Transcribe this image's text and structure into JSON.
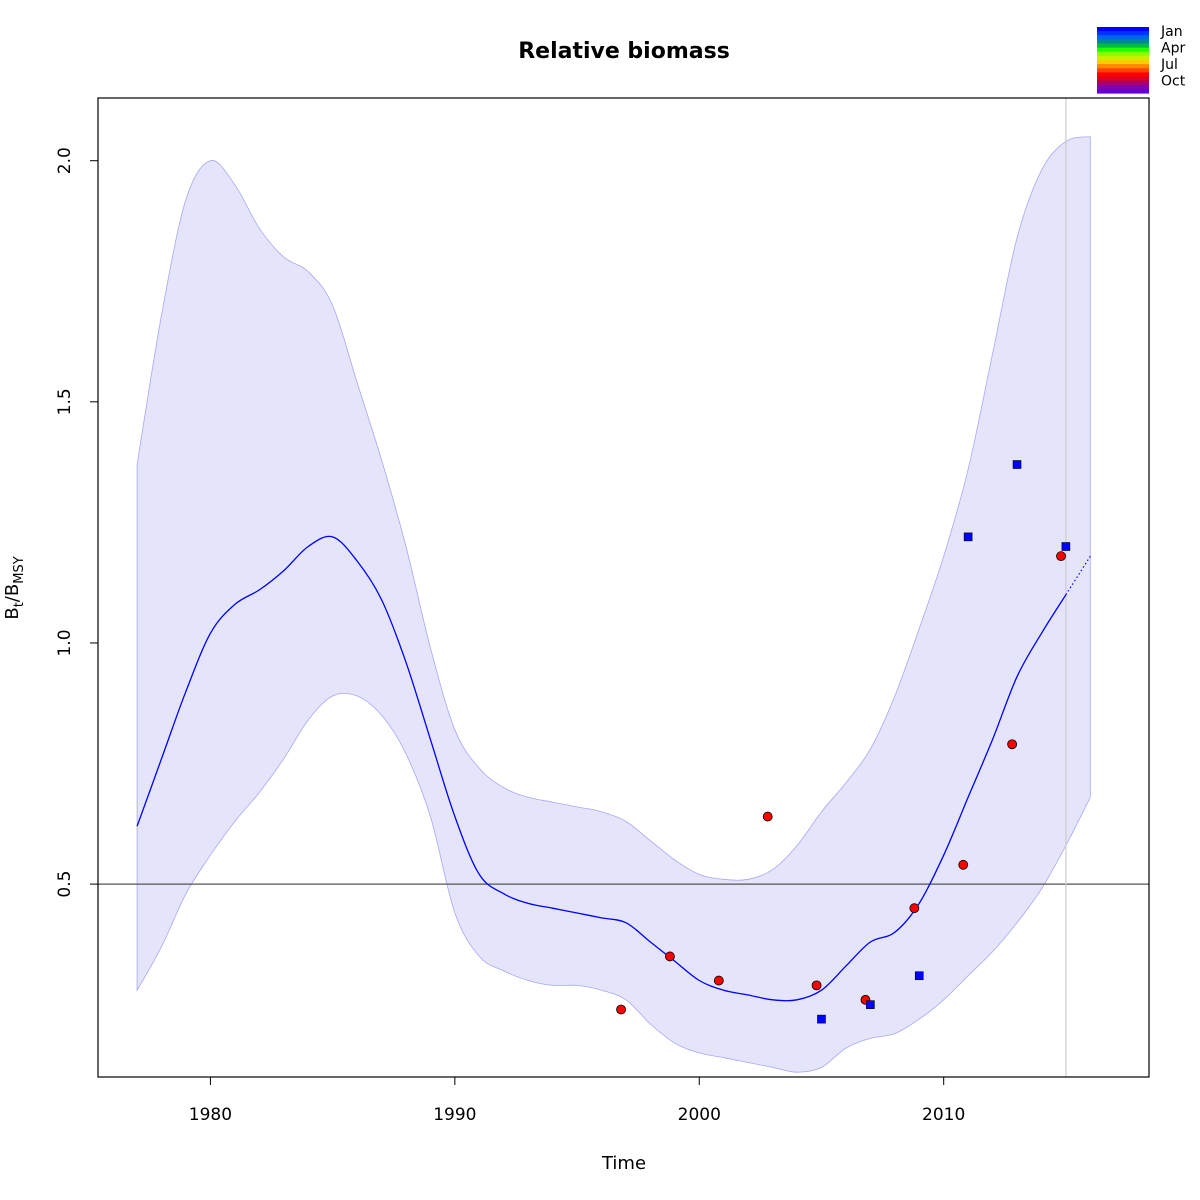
{
  "chart_data": {
    "type": "line",
    "title": "Relative biomass",
    "xlabel": "Time",
    "ylabel": {
      "base1": "B",
      "sub1": "t",
      "sep": "/",
      "base2": "B",
      "sub2": "MSY"
    },
    "xlim": [
      1975.4,
      2018.4
    ],
    "ylim": [
      0.1,
      2.13
    ],
    "xticks": [
      1980,
      1990,
      2000,
      2010
    ],
    "xtick_labels": [
      "1980",
      "1990",
      "2000",
      "2010"
    ],
    "yticks": [
      0.5,
      1.0,
      1.5,
      2.0
    ],
    "ytick_labels": [
      "0.5",
      "1.0",
      "1.5",
      "2.0"
    ],
    "colors": {
      "line": "#0000ff",
      "band": "#e4e4fb",
      "band_border": "#a8a8f0",
      "red_points": "#ff0000",
      "blue_points": "#0000ff",
      "ref_line": "#555555",
      "vline": "#cccccc"
    },
    "reference_line_y": 0.5,
    "vertical_line_x": 2015,
    "estimate": {
      "x": [
        1977,
        1978,
        1979,
        1980,
        1981,
        1982,
        1983,
        1984,
        1985,
        1986,
        1987,
        1988,
        1989,
        1990,
        1991,
        1992,
        1993,
        1994,
        1995,
        1996,
        1997,
        1998,
        1999,
        2000,
        2001,
        2002,
        2003,
        2004,
        2005,
        2006,
        2007,
        2008,
        2009,
        2010,
        2011,
        2012,
        2013,
        2014,
        2015
      ],
      "y": [
        0.62,
        0.76,
        0.9,
        1.02,
        1.08,
        1.11,
        1.15,
        1.2,
        1.22,
        1.17,
        1.09,
        0.96,
        0.8,
        0.64,
        0.52,
        0.48,
        0.46,
        0.45,
        0.44,
        0.43,
        0.42,
        0.38,
        0.34,
        0.3,
        0.28,
        0.27,
        0.26,
        0.26,
        0.28,
        0.33,
        0.38,
        0.4,
        0.46,
        0.56,
        0.68,
        0.8,
        0.93,
        1.02,
        1.1
      ]
    },
    "forecast": {
      "x": [
        2015,
        2016
      ],
      "y": [
        1.1,
        1.18
      ]
    },
    "ci_upper": {
      "x": [
        1977,
        1978,
        1979,
        1980,
        1981,
        1982,
        1983,
        1984,
        1985,
        1986,
        1987,
        1988,
        1989,
        1990,
        1991,
        1992,
        1993,
        1994,
        1995,
        1996,
        1997,
        1998,
        1999,
        2000,
        2001,
        2002,
        2003,
        2004,
        2005,
        2006,
        2007,
        2008,
        2009,
        2010,
        2011,
        2012,
        2013,
        2014,
        2015,
        2016
      ],
      "y": [
        1.37,
        1.68,
        1.92,
        2.0,
        1.95,
        1.86,
        1.8,
        1.77,
        1.7,
        1.54,
        1.38,
        1.2,
        0.99,
        0.82,
        0.74,
        0.7,
        0.68,
        0.67,
        0.66,
        0.65,
        0.63,
        0.59,
        0.55,
        0.52,
        0.51,
        0.51,
        0.53,
        0.58,
        0.65,
        0.71,
        0.78,
        0.89,
        1.03,
        1.18,
        1.36,
        1.6,
        1.84,
        1.98,
        2.04,
        2.05
      ]
    },
    "ci_lower": {
      "x": [
        1977,
        1978,
        1979,
        1980,
        1981,
        1982,
        1983,
        1984,
        1985,
        1986,
        1987,
        1988,
        1989,
        1990,
        1991,
        1992,
        1993,
        1994,
        1995,
        1996,
        1997,
        1998,
        1999,
        2000,
        2001,
        2002,
        2003,
        2004,
        2005,
        2006,
        2007,
        2008,
        2009,
        2010,
        2011,
        2012,
        2013,
        2014,
        2015,
        2016
      ],
      "y": [
        0.28,
        0.37,
        0.48,
        0.56,
        0.63,
        0.69,
        0.76,
        0.84,
        0.89,
        0.89,
        0.85,
        0.77,
        0.64,
        0.44,
        0.35,
        0.32,
        0.3,
        0.29,
        0.29,
        0.28,
        0.26,
        0.21,
        0.17,
        0.15,
        0.14,
        0.13,
        0.12,
        0.11,
        0.12,
        0.16,
        0.18,
        0.19,
        0.22,
        0.26,
        0.31,
        0.36,
        0.42,
        0.49,
        0.58,
        0.68
      ]
    },
    "observations_red": {
      "x": [
        1996.8,
        1998.8,
        2000.8,
        2002.8,
        2004.8,
        2006.8,
        2008.8,
        2010.8,
        2012.8,
        2014.8
      ],
      "y": [
        0.24,
        0.35,
        0.3,
        0.64,
        0.29,
        0.26,
        0.45,
        0.54,
        0.79,
        1.18
      ]
    },
    "observations_blue": {
      "x": [
        2005.0,
        2007.0,
        2009.0,
        2011.0,
        2013.0,
        2015.0
      ],
      "y": [
        0.22,
        0.25,
        0.31,
        1.22,
        1.37,
        1.2
      ]
    },
    "legend": {
      "type": "color-gradient",
      "placement": "top-right",
      "labels": [
        "Jan",
        "Apr",
        "Jul",
        "Oct"
      ],
      "colors": [
        "#0000ff",
        "#0033ff",
        "#0066ee",
        "#008899",
        "#00bb44",
        "#22ff00",
        "#88ff00",
        "#ccee00",
        "#ffcc00",
        "#ff8800",
        "#ff4400",
        "#ff0000",
        "#dd0022",
        "#aa0066",
        "#8800aa",
        "#6600cc"
      ]
    }
  }
}
